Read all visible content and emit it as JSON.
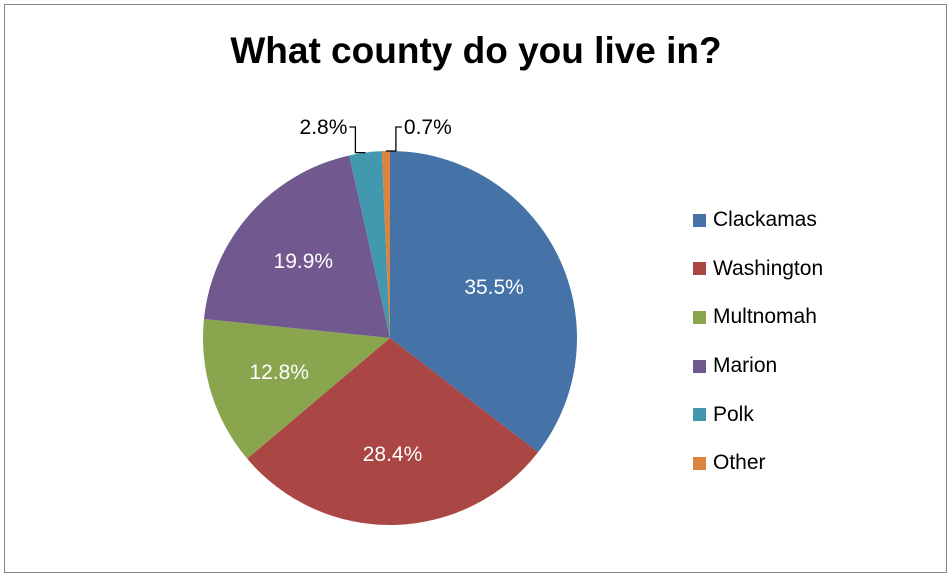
{
  "chart_data": {
    "type": "pie",
    "title": "What county do you live in?",
    "categories": [
      "Clackamas",
      "Washington",
      "Multnomah",
      "Marion",
      "Polk",
      "Other"
    ],
    "values": [
      35.5,
      28.4,
      12.8,
      19.9,
      2.8,
      0.7
    ],
    "value_labels": [
      "35.5%",
      "28.4%",
      "12.8%",
      "19.9%",
      "2.8%",
      "0.7%"
    ],
    "colors": [
      "#4572A7",
      "#AA4643",
      "#89A54E",
      "#71588F",
      "#4198AF",
      "#DB843D"
    ],
    "start_angle": "12 o'clock, clockwise",
    "legend": "right"
  }
}
